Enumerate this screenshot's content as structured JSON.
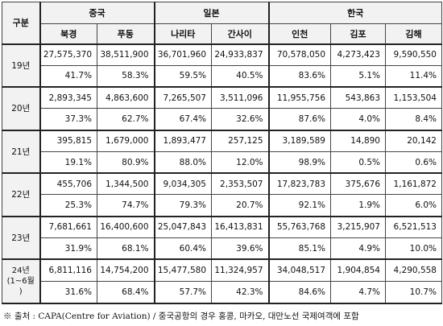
{
  "header": {
    "gubun": "구분",
    "groups": [
      "중국",
      "일본",
      "한국"
    ],
    "airports": [
      "북경",
      "푸동",
      "나리타",
      "간사이",
      "인천",
      "김포",
      "김해"
    ]
  },
  "rows": [
    {
      "year": "19년",
      "counts": [
        "27,575,370",
        "38,511,900",
        "36,701,960",
        "24,933,837",
        "70,578,050",
        "4,273,423",
        "9,590,550"
      ],
      "shares": [
        "41.7%",
        "58.3%",
        "59.5%",
        "40.5%",
        "83.6%",
        "5.1%",
        "11.4%"
      ]
    },
    {
      "year": "20년",
      "counts": [
        "2,893,345",
        "4,863,600",
        "7,265,507",
        "3,511,096",
        "11,955,756",
        "543,863",
        "1,153,504"
      ],
      "shares": [
        "37.3%",
        "62.7%",
        "67.4%",
        "32.6%",
        "87.6%",
        "4.0%",
        "8.4%"
      ]
    },
    {
      "year": "21년",
      "counts": [
        "395,815",
        "1,679,000",
        "1,893,477",
        "257,125",
        "3,189,589",
        "14,890",
        "20,142"
      ],
      "shares": [
        "19.1%",
        "80.9%",
        "88.0%",
        "12.0%",
        "98.9%",
        "0.5%",
        "0.6%"
      ]
    },
    {
      "year": "22년",
      "counts": [
        "455,706",
        "1,344,500",
        "9,034,305",
        "2,353,507",
        "17,823,783",
        "375,676",
        "1,161,872"
      ],
      "shares": [
        "25.3%",
        "74.7%",
        "79.3%",
        "20.7%",
        "92.1%",
        "1.9%",
        "6.0%"
      ]
    },
    {
      "year": "23년",
      "counts": [
        "7,681,661",
        "16,400,600",
        "25,047,843",
        "16,413,831",
        "55,763,768",
        "3,215,907",
        "6,521,513"
      ],
      "shares": [
        "31.9%",
        "68.1%",
        "60.4%",
        "39.6%",
        "85.1%",
        "4.9%",
        "10.0%"
      ]
    },
    {
      "year": "24년\n(1~6월\n)",
      "counts": [
        "6,811,116",
        "14,754,200",
        "15,477,580",
        "11,324,957",
        "34,048,517",
        "1,904,854",
        "4,290,558"
      ],
      "shares": [
        "31.6%",
        "68.4%",
        "57.7%",
        "42.3%",
        "84.6%",
        "4.7%",
        "10.7%"
      ]
    }
  ],
  "note": "※ 출처 : CAPA(Centre for Aviation) / 중국공항의 경우 홍콩, 마카오, 대만노선 국제여객에 포함"
}
